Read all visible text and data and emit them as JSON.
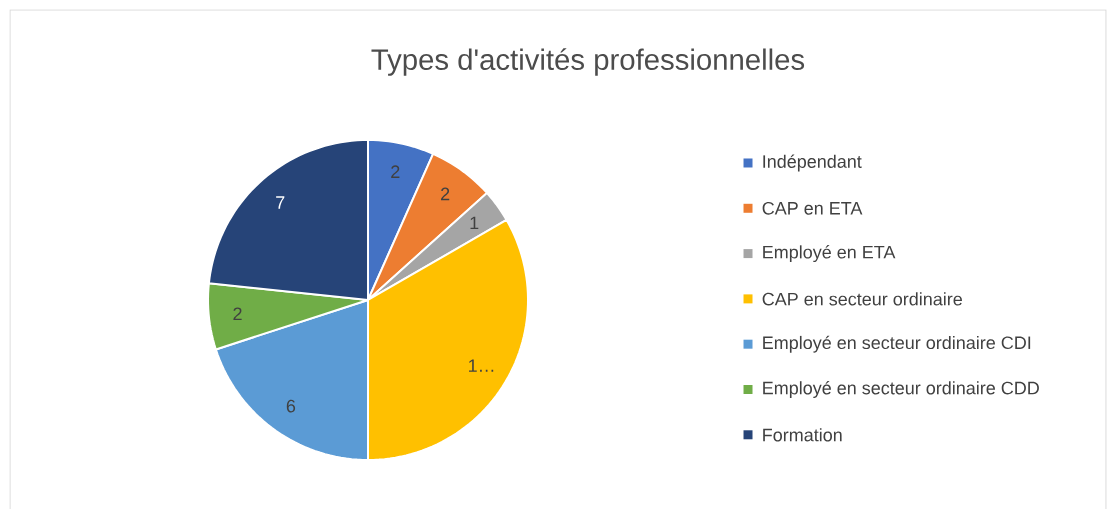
{
  "chart_data": {
    "type": "pie",
    "title": "Types d'activités professionnelles",
    "categories": [
      "Indépendant",
      "CAP en ETA",
      "Employé en ETA",
      "CAP en secteur ordinaire",
      "Employé en secteur ordinaire CDI",
      "Employé en secteur ordinaire CDD",
      "Formation"
    ],
    "values": [
      2,
      2,
      1,
      10,
      6,
      2,
      7
    ],
    "value_labels": [
      "2",
      "2",
      "1",
      "1…",
      "6",
      "2",
      "7"
    ],
    "colors": [
      "#4472c4",
      "#ed7d31",
      "#a5a5a5",
      "#ffc000",
      "#5b9bd5",
      "#70ad47",
      "#264478"
    ],
    "legend": "right"
  }
}
